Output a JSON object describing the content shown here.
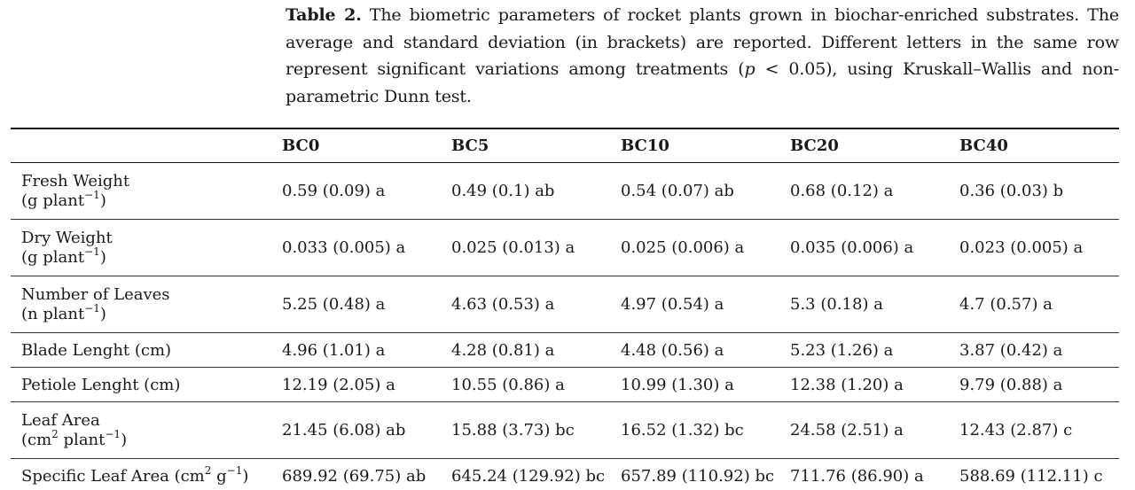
{
  "caption": {
    "label": "Table 2.",
    "text_part1": "The biometric parameters of rocket plants grown in biochar-enriched substrates. The average and standard deviation (in brackets) are reported. Different letters in the same row represent significant variations among treatments (",
    "p_symbol": "p",
    "text_part2": " < 0.05), using Kruskall–Wallis and non-parametric Dunn test."
  },
  "table": {
    "columns": [
      "",
      "BC0",
      "BC5",
      "BC10",
      "BC20",
      "BC40"
    ],
    "rows": [
      {
        "param": "Fresh Weight",
        "unit_pre": "(g plant",
        "unit_sup": "−1",
        "unit_post": ")",
        "values": [
          "0.59 (0.09) a",
          "0.49 (0.1) ab",
          "0.54 (0.07) ab",
          "0.68 (0.12) a",
          "0.36 (0.03) b"
        ]
      },
      {
        "param": "Dry Weight",
        "unit_pre": "(g plant",
        "unit_sup": "−1",
        "unit_post": ")",
        "values": [
          "0.033 (0.005) a",
          "0.025 (0.013) a",
          "0.025 (0.006) a",
          "0.035 (0.006) a",
          "0.023 (0.005) a"
        ]
      },
      {
        "param": "Number of Leaves",
        "unit_pre": "(n plant",
        "unit_sup": "−1",
        "unit_post": ")",
        "values": [
          "5.25 (0.48) a",
          "4.63 (0.53) a",
          "4.97 (0.54) a",
          "5.3 (0.18) a",
          "4.7 (0.57) a"
        ]
      },
      {
        "param": "Blade Lenght (cm)",
        "values": [
          "4.96 (1.01) a",
          "4.28 (0.81) a",
          "4.48 (0.56) a",
          "5.23 (1.26) a",
          "3.87 (0.42) a"
        ]
      },
      {
        "param": "Petiole Lenght (cm)",
        "values": [
          "12.19 (2.05) a",
          "10.55 (0.86) a",
          "10.99 (1.30) a",
          "12.38 (1.20) a",
          "9.79 (0.88) a"
        ]
      },
      {
        "param": "Leaf Area",
        "unit_pre": "(cm",
        "unit_sup": "2",
        "unit_mid": " plant",
        "unit_sup2": "−1",
        "unit_post": ")",
        "values": [
          "21.45 (6.08) ab",
          "15.88 (3.73) bc",
          "16.52 (1.32) bc",
          "24.58 (2.51) a",
          "12.43 (2.87) c"
        ]
      },
      {
        "param_pre": "Specific Leaf Area (cm",
        "param_sup": "2",
        "param_mid": " g",
        "param_sup2": "−1",
        "param_post": ")",
        "values": [
          "689.92 (69.75) ab",
          "645.24 (129.92) bc",
          "657.89 (110.92) bc",
          "711.76 (86.90) a",
          "588.69 (112.11) c"
        ]
      }
    ]
  }
}
